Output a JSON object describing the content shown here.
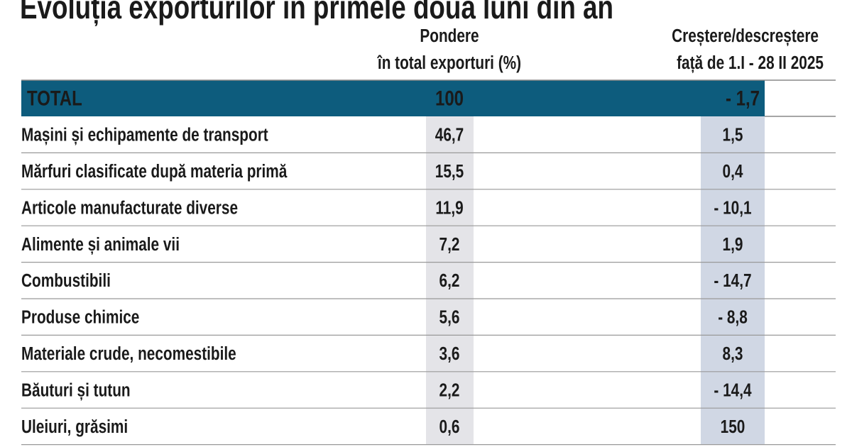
{
  "title": "Evoluția exporturilor în primele două luni din an",
  "headers": [
    [
      "Pondere",
      "în total exporturi (%)"
    ],
    [
      "Creștere/descreștere",
      "față de 1.I - 28 II 2025"
    ]
  ],
  "total": {
    "label": "TOTAL",
    "share": "100",
    "change": "- 1,7"
  },
  "rows": [
    {
      "label": "Mașini și echipamente de transport",
      "share": "46,7",
      "change": "1,5"
    },
    {
      "label": "Mărfuri clasificate după materia primă",
      "share": "15,5",
      "change": "0,4"
    },
    {
      "label": "Articole manufacturate diverse",
      "share": "11,9",
      "change": "- 10,1"
    },
    {
      "label": "Alimente și animale vii",
      "share": "7,2",
      "change": "1,9"
    },
    {
      "label": "Combustibili",
      "share": "6,2",
      "change": "- 14,7"
    },
    {
      "label": "Produse chimice",
      "share": "5,6",
      "change": "- 8,8"
    },
    {
      "label": "Materiale crude, necomestibile",
      "share": "3,6",
      "change": "8,3"
    },
    {
      "label": "Băuturi și tutun",
      "share": "2,2",
      "change": "- 14,4"
    },
    {
      "label": "Uleiuri, grăsimi",
      "share": "0,6",
      "change": "150"
    }
  ]
}
